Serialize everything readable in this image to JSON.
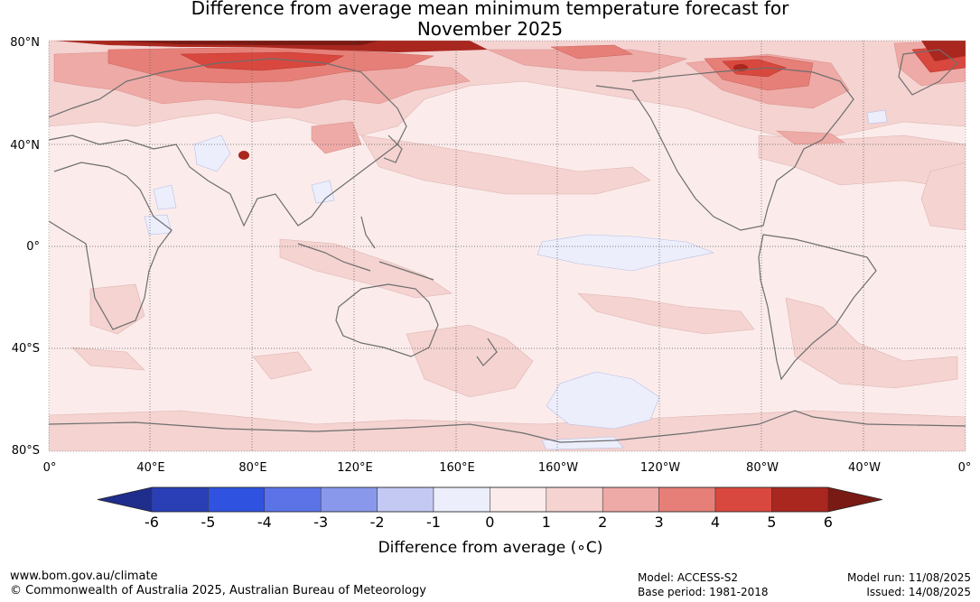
{
  "title_line1": "Difference from average mean minimum temperature forecast for",
  "title_line2": "November 2025",
  "map": {
    "lat_labels": [
      "80°N",
      "40°N",
      "0°",
      "40°S",
      "80°S"
    ],
    "lon_labels": [
      "0°",
      "40°E",
      "80°E",
      "120°E",
      "160°E",
      "160°W",
      "120°W",
      "80°W",
      "40°W",
      "0°"
    ]
  },
  "colorbar": {
    "label": "Difference from average (∘C)",
    "ticks": [
      "-6",
      "-5",
      "-4",
      "-3",
      "-2",
      "-1",
      "0",
      "1",
      "2",
      "3",
      "4",
      "5",
      "6"
    ],
    "colors": [
      "#1f2e8c",
      "#2a3fb6",
      "#2f52e0",
      "#5c73e8",
      "#8a98ec",
      "#c3c9f3",
      "#eceefc",
      "#fbeceb",
      "#f4d3d1",
      "#eeaaa6",
      "#e67f78",
      "#d9483e",
      "#a9271f",
      "#7a1a14"
    ]
  },
  "footer": {
    "website": "www.bom.gov.au/climate",
    "copyright": "© Commonwealth of Australia 2025, Australian Bureau of Meteorology",
    "model": "Model: ACCESS-S2",
    "base_period": "Base period: 1981-2018",
    "model_run": "Model run: 11/08/2025",
    "issued": "Issued: 14/08/2025"
  }
}
